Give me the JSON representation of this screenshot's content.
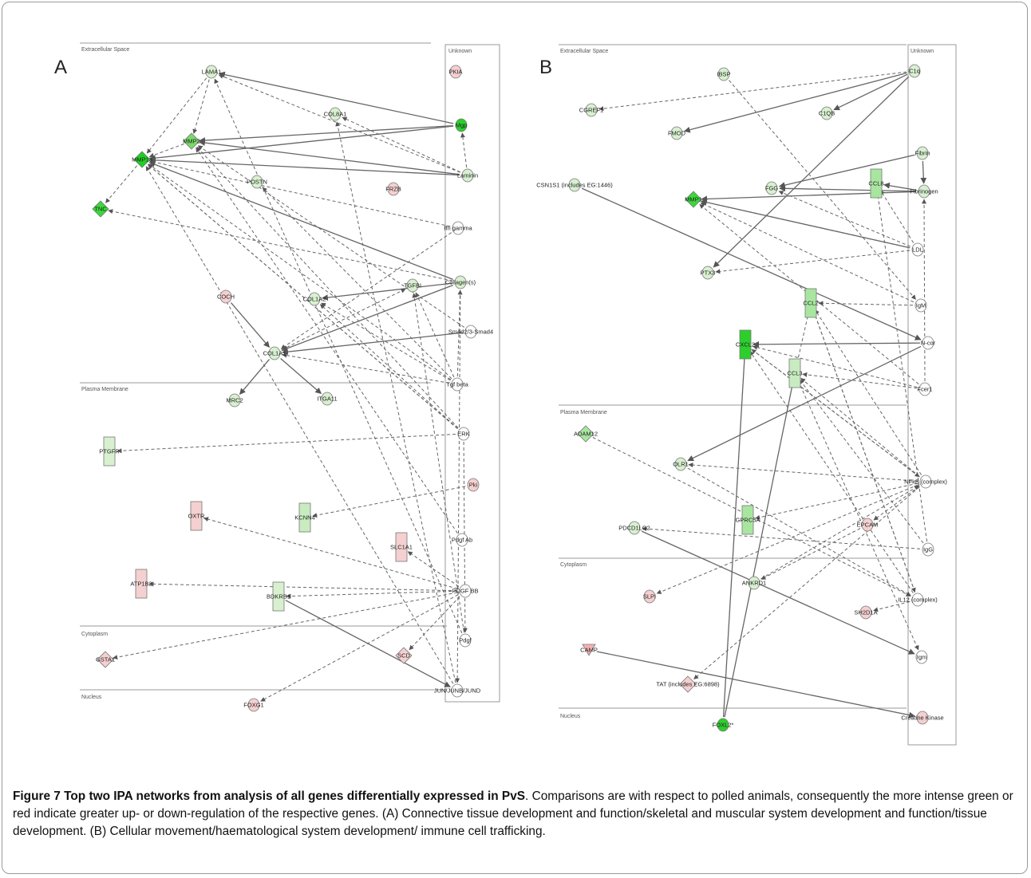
{
  "panels": [
    {
      "id": "A",
      "letter": "A",
      "compartments": [
        "Extracellular Space",
        "Plasma Membrane",
        "Cytoplasm",
        "Nucleus"
      ],
      "unknown_label": "Unknown",
      "nodes": [
        {
          "id": "LAMA1",
          "label": "LAMA1",
          "shape": "ellipse",
          "color": "#d8f0d0"
        },
        {
          "id": "COL8A1",
          "label": "COL8A1",
          "shape": "ellipse",
          "color": "#d8f0d0"
        },
        {
          "id": "MMP2",
          "label": "MMP2",
          "shape": "diamond",
          "color": "#7ad86a"
        },
        {
          "id": "MMP13",
          "label": "MMP13",
          "shape": "diamond",
          "color": "#1ecf22"
        },
        {
          "id": "TNC",
          "label": "TNC",
          "shape": "diamond",
          "color": "#3ad93a"
        },
        {
          "id": "POSTN",
          "label": "POSTN",
          "shape": "ellipse",
          "color": "#d8f0d0"
        },
        {
          "id": "FRZB",
          "label": "FRZB",
          "shape": "ellipse",
          "color": "#f5d0d0"
        },
        {
          "id": "COCH",
          "label": "COCH",
          "shape": "ellipse",
          "color": "#f5d0d0"
        },
        {
          "id": "COL1A2",
          "label": "COL1A2",
          "shape": "ellipse",
          "color": "#d8f0d0"
        },
        {
          "id": "TGFBI",
          "label": "TGFBI",
          "shape": "ellipse",
          "color": "#d8f0d0"
        },
        {
          "id": "COL1A1",
          "label": "COL1A1",
          "shape": "ellipse",
          "color": "#d8f0d0"
        },
        {
          "id": "MRC2",
          "label": "MRC2",
          "shape": "ellipse",
          "color": "#d8f0d0"
        },
        {
          "id": "ITGA11",
          "label": "ITGA11",
          "shape": "ellipse",
          "color": "#d8f0d0"
        },
        {
          "id": "PTGFR",
          "label": "PTGFR",
          "shape": "rect",
          "color": "#d8f0d0"
        },
        {
          "id": "OXTR",
          "label": "OXTR",
          "shape": "rect",
          "color": "#f5d0d0"
        },
        {
          "id": "KCNN4",
          "label": "KCNN4",
          "shape": "rect",
          "color": "#c8ecc0"
        },
        {
          "id": "ATP1B2",
          "label": "ATP1B2",
          "shape": "rect",
          "color": "#f5d0d0"
        },
        {
          "id": "BDKRB1",
          "label": "BDKRB1",
          "shape": "rect",
          "color": "#d8f0d0"
        },
        {
          "id": "SLC1A1",
          "label": "SLC1A1",
          "shape": "rect",
          "color": "#f5d0d0"
        },
        {
          "id": "GSTA1",
          "label": "GSTA1",
          "shape": "diamond",
          "color": "#f5d0d0"
        },
        {
          "id": "SCD",
          "label": "SCD",
          "shape": "diamond",
          "color": "#f5d0d0"
        },
        {
          "id": "FOXG1",
          "label": "FOXG1",
          "shape": "ellipse",
          "color": "#f5d0d0"
        },
        {
          "id": "PKIA",
          "label": "PKIA",
          "shape": "ellipse",
          "color": "#f5d0d0"
        },
        {
          "id": "Mgp",
          "label": "Mgp",
          "shape": "ellipse",
          "color": "#2ccf2c"
        },
        {
          "id": "Laminin",
          "label": "Laminin",
          "shape": "ellipse",
          "color": "#d8f0d0"
        },
        {
          "id": "Ifngamma",
          "label": "Ifn gamma",
          "shape": "ellipse",
          "color": "#ffffff"
        },
        {
          "id": "Collagens",
          "label": "Collagen(s)",
          "shape": "ellipse",
          "color": "#d8f0d0"
        },
        {
          "id": "Smad",
          "label": "Smad2/3-Smad4",
          "shape": "ellipse",
          "color": "#ffffff"
        },
        {
          "id": "Tgfbeta",
          "label": "Tgf beta",
          "shape": "ellipse",
          "color": "#ffffff"
        },
        {
          "id": "ERK",
          "label": "ERK",
          "shape": "ellipse",
          "color": "#ffffff"
        },
        {
          "id": "Pki",
          "label": "Pki",
          "shape": "ellipse",
          "color": "#f5d0d0"
        },
        {
          "id": "PdgfAb",
          "label": "Pdgf Ab",
          "shape": "ellipse",
          "color": "#ffffff"
        },
        {
          "id": "PDGFBB",
          "label": "PDGF BB",
          "shape": "ellipse",
          "color": "#ffffff"
        },
        {
          "id": "Pdgf",
          "label": "Pdgf",
          "shape": "ellipse",
          "color": "#ffffff"
        },
        {
          "id": "JUN",
          "label": "JUN/JUNB/JUND",
          "shape": "ellipse",
          "color": "#ffffff"
        }
      ],
      "solid_edges": [
        [
          "Mgp",
          "MMP2"
        ],
        [
          "Mgp",
          "MMP13"
        ],
        [
          "Mgp",
          "LAMA1"
        ],
        [
          "Laminin",
          "MMP2"
        ],
        [
          "Laminin",
          "MMP13"
        ],
        [
          "Collagens",
          "MMP13"
        ],
        [
          "Collagens",
          "COL1A1"
        ],
        [
          "Collagens",
          "COL1A2"
        ],
        [
          "COL1A1",
          "MRC2"
        ],
        [
          "COL1A1",
          "ITGA11"
        ],
        [
          "COCH",
          "COL1A1"
        ],
        [
          "Smad",
          "COL1A1"
        ],
        [
          "BDKRB1",
          "JUN"
        ]
      ],
      "dashed_edges": [
        [
          "LAMA1",
          "MMP2"
        ],
        [
          "LAMA1",
          "MMP13"
        ],
        [
          "Laminin",
          "LAMA1"
        ],
        [
          "Laminin",
          "COL8A1"
        ],
        [
          "Laminin",
          "Mgp"
        ],
        [
          "MMP13",
          "TNC"
        ],
        [
          "Collagens",
          "TNC"
        ],
        [
          "ERK",
          "MMP13"
        ],
        [
          "ERK",
          "MMP2"
        ],
        [
          "ERK",
          "PTGFR"
        ],
        [
          "Pki",
          "KCNN4"
        ],
        [
          "PDGFBB",
          "OXTR"
        ],
        [
          "PDGFBB",
          "BDKRB1"
        ],
        [
          "PDGFBB",
          "ATP1B2"
        ],
        [
          "PDGFBB",
          "SLC1A1"
        ],
        [
          "PDGFBB",
          "SCD"
        ],
        [
          "PDGFBB",
          "FOXG1"
        ],
        [
          "PDGFBB",
          "GSTA1"
        ],
        [
          "Tgfbeta",
          "COL1A1"
        ],
        [
          "Tgfbeta",
          "MMP13"
        ],
        [
          "Tgfbeta",
          "POSTN"
        ],
        [
          "Tgfbeta",
          "TGFBI"
        ],
        [
          "Tgfbeta",
          "COL1A2"
        ],
        [
          "Ifngamma",
          "MMP13"
        ],
        [
          "Ifngamma",
          "COL1A1"
        ],
        [
          "Smad",
          "MMP2"
        ],
        [
          "ERK",
          "COL1A2"
        ],
        [
          "JUN",
          "MMP13"
        ],
        [
          "JUN",
          "COL8A1"
        ],
        [
          "Pdgf",
          "LAMA1"
        ],
        [
          "PdgfAb",
          "MMP2"
        ],
        [
          "Pdgf",
          "TGFBI"
        ],
        [
          "ERK",
          "MMP13"
        ],
        [
          "COL1A1",
          "TGFBI"
        ],
        [
          "MMP2",
          "MMP13"
        ],
        [
          "Collagens",
          "JUN"
        ],
        [
          "ERK",
          "Pdgf"
        ],
        [
          "Tgfbeta",
          "Collagens"
        ]
      ]
    },
    {
      "id": "B",
      "letter": "B",
      "compartments": [
        "Extracellular Space",
        "Plasma Membrane",
        "Cytoplasm",
        "Nucleus"
      ],
      "unknown_label": "Unknown",
      "nodes": [
        {
          "id": "IBSP",
          "label": "IBSP",
          "shape": "ellipse",
          "color": "#d8f0d0"
        },
        {
          "id": "CGREF1",
          "label": "CGREF1",
          "shape": "ellipse",
          "color": "#d8f0d0"
        },
        {
          "id": "FMOD",
          "label": "FMOD",
          "shape": "ellipse",
          "color": "#d8f0d0"
        },
        {
          "id": "C1QB",
          "label": "C1QB",
          "shape": "ellipse",
          "color": "#d8f0d0"
        },
        {
          "id": "CSN1S1",
          "label": "CSN1S1 (includes EG:1446)",
          "shape": "ellipse",
          "color": "#d8f0d0"
        },
        {
          "id": "MMP1",
          "label": "MMP1",
          "shape": "diamond",
          "color": "#3ad93a"
        },
        {
          "id": "FGG",
          "label": "FGG",
          "shape": "ellipse",
          "color": "#d8f0d0"
        },
        {
          "id": "CCL8",
          "label": "CCL8",
          "shape": "rect",
          "color": "#a8e6a0"
        },
        {
          "id": "PTX3",
          "label": "PTX3",
          "shape": "ellipse",
          "color": "#d8f0d0"
        },
        {
          "id": "CCL2",
          "label": "CCL2",
          "shape": "rect",
          "color": "#a8e6a0"
        },
        {
          "id": "CXCL2",
          "label": "CXCL2",
          "shape": "rect",
          "color": "#2ccf2c"
        },
        {
          "id": "CCL3",
          "label": "CCL3",
          "shape": "rect",
          "color": "#c8ecc0"
        },
        {
          "id": "ADAM12",
          "label": "ADAM12",
          "shape": "diamond",
          "color": "#a8e6a0"
        },
        {
          "id": "OLR1",
          "label": "OLR1",
          "shape": "ellipse",
          "color": "#d8f0d0"
        },
        {
          "id": "PDCD1LG2",
          "label": "PDCD1LG2",
          "shape": "ellipse",
          "color": "#d8f0d0"
        },
        {
          "id": "GPRC5A",
          "label": "GPRC5A",
          "shape": "rect",
          "color": "#a8e6a0"
        },
        {
          "id": "EPCAM",
          "label": "EPCAM",
          "shape": "ellipse",
          "color": "#f5d0d0"
        },
        {
          "id": "ANKRD1",
          "label": "ANKRD1",
          "shape": "ellipse",
          "color": "#d8f0d0"
        },
        {
          "id": "SLPI",
          "label": "SLPI",
          "shape": "ellipse",
          "color": "#f5d0d0"
        },
        {
          "id": "SH2D1A",
          "label": "SH2D1A",
          "shape": "ellipse",
          "color": "#f5d0d0"
        },
        {
          "id": "CAMP",
          "label": "CAMP",
          "shape": "triangle",
          "color": "#f5b0b0"
        },
        {
          "id": "TAT",
          "label": "TAT (includes EG:6898)",
          "shape": "diamond",
          "color": "#f5d0d0"
        },
        {
          "id": "FOXL2",
          "label": "FOXL2*",
          "shape": "ellipse",
          "color": "#2ccf2c"
        },
        {
          "id": "C1q",
          "label": "C1q",
          "shape": "ellipse",
          "color": "#d8f0d0"
        },
        {
          "id": "Fibrin",
          "label": "Fibrin",
          "shape": "ellipse",
          "color": "#d8f0d0"
        },
        {
          "id": "Fibrinogen",
          "label": "Fibrinogen",
          "shape": "ellipse",
          "color": "#d8f0d0"
        },
        {
          "id": "LDL",
          "label": "LDL",
          "shape": "ellipse",
          "color": "#ffffff"
        },
        {
          "id": "IgM",
          "label": "IgM",
          "shape": "ellipse",
          "color": "#ffffff"
        },
        {
          "id": "Ncor",
          "label": "N-cor",
          "shape": "ellipse",
          "color": "#ffffff"
        },
        {
          "id": "Fcer1",
          "label": "Fcer1",
          "shape": "ellipse",
          "color": "#ffffff"
        },
        {
          "id": "NFkB",
          "label": "NFkB (complex)",
          "shape": "ellipse",
          "color": "#ffffff"
        },
        {
          "id": "IgG",
          "label": "IgG",
          "shape": "ellipse",
          "color": "#ffffff"
        },
        {
          "id": "IL12",
          "label": "IL12 (complex)",
          "shape": "ellipse",
          "color": "#ffffff"
        },
        {
          "id": "Igm",
          "label": "Igm",
          "shape": "ellipse",
          "color": "#ffffff"
        },
        {
          "id": "CK",
          "label": "Creatine Kinase",
          "shape": "ellipse",
          "color": "#f5d0d0"
        }
      ],
      "solid_edges": [
        [
          "C1q",
          "FMOD"
        ],
        [
          "C1q",
          "PTX3"
        ],
        [
          "Fibrin",
          "FGG"
        ],
        [
          "Fibrinogen",
          "MMP1"
        ],
        [
          "Fibrinogen",
          "FGG"
        ],
        [
          "Fibrinogen",
          "CCL8"
        ],
        [
          "CSN1S1",
          "Ncor"
        ],
        [
          "Ncor",
          "CXCL2"
        ],
        [
          "Ncor",
          "OLR1"
        ],
        [
          "FOXL2",
          "CXCL2"
        ],
        [
          "FOXL2",
          "CCL3"
        ],
        [
          "PDCD1LG2",
          "Igm"
        ],
        [
          "CAMP",
          "CK"
        ],
        [
          "LDL",
          "MMP1"
        ],
        [
          "C1q",
          "C1QB"
        ],
        [
          "Fibrin",
          "Fibrinogen"
        ]
      ],
      "dashed_edges": [
        [
          "IBSP",
          "IgM"
        ],
        [
          "C1q",
          "CGREF1"
        ],
        [
          "LDL",
          "MMP1"
        ],
        [
          "LDL",
          "FGG"
        ],
        [
          "LDL",
          "PTX3"
        ],
        [
          "NFkB",
          "CCL2"
        ],
        [
          "NFkB",
          "CXCL2"
        ],
        [
          "NFkB",
          "CCL3"
        ],
        [
          "NFkB",
          "OLR1"
        ],
        [
          "NFkB",
          "GPRC5A"
        ],
        [
          "NFkB",
          "SLPI"
        ],
        [
          "NFkB",
          "EPCAM"
        ],
        [
          "NFkB",
          "TAT"
        ],
        [
          "IL12",
          "CCL2"
        ],
        [
          "IL12",
          "CXCL2"
        ],
        [
          "IL12",
          "SH2D1A"
        ],
        [
          "IgG",
          "CCL3"
        ],
        [
          "IgG",
          "PDCD1LG2"
        ],
        [
          "Fcer1",
          "CCL3"
        ],
        [
          "Fcer1",
          "CXCL2"
        ],
        [
          "Fcer1",
          "MMP1"
        ],
        [
          "IgM",
          "CCL2"
        ],
        [
          "IgM",
          "MMP1"
        ],
        [
          "ADAM12",
          "IL12"
        ],
        [
          "ANKRD1",
          "NFkB"
        ],
        [
          "OLR1",
          "IL12"
        ],
        [
          "EPCAM",
          "ANKRD1"
        ],
        [
          "CCL2",
          "IL12"
        ],
        [
          "CCL3",
          "Igm"
        ],
        [
          "LDL",
          "CCL8"
        ],
        [
          "Fcer1",
          "Fibrinogen"
        ],
        [
          "IgG",
          "CCL8"
        ],
        [
          "CXCL2",
          "NFkB"
        ],
        [
          "CCL2",
          "CCL3"
        ]
      ]
    }
  ],
  "caption": {
    "bold": "Figure 7 Top two IPA networks from analysis of all genes differentially expressed in PvS",
    "text": ". Comparisons are with respect to polled animals, consequently the more intense green or red indicate greater up- or down-regulation of the respective genes. (A) Connective tissue development and function/skeletal and muscular system development and function/tissue development. (B) Cellular movement/haematological system development/ immune cell trafficking."
  }
}
